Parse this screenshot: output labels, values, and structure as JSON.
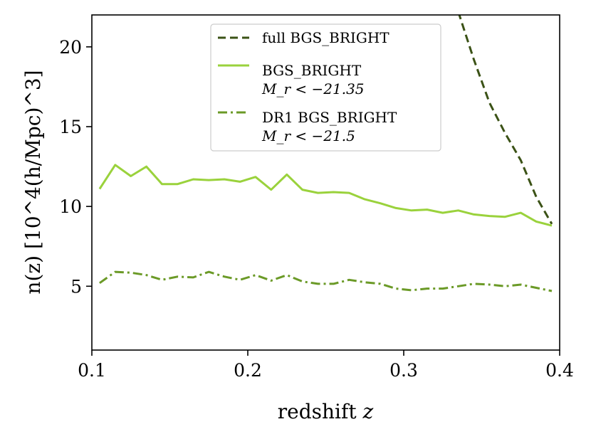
{
  "chart_data": {
    "type": "line",
    "xlabel": "redshift z",
    "ylabel": "n(z) [10^4(h/Mpc)^3]",
    "xlim": [
      0.1,
      0.4
    ],
    "ylim": [
      1,
      22
    ],
    "xticks": [
      0.1,
      0.2,
      0.3,
      0.4
    ],
    "xtick_labels": [
      "0.1",
      "0.2",
      "0.3",
      "0.4"
    ],
    "yticks": [
      5,
      10,
      15,
      20
    ],
    "ytick_labels": [
      "5",
      "10",
      "15",
      "20"
    ],
    "grid": false,
    "legend_position": "top-center",
    "series": [
      {
        "name": "full BGS_BRIGHT",
        "sublabel": "",
        "color": "#3b5216",
        "style": "dashed",
        "x": [
          0.335,
          0.345,
          0.355,
          0.365,
          0.375,
          0.385,
          0.395
        ],
        "y": [
          22.2,
          19.2,
          16.5,
          14.6,
          12.9,
          10.6,
          8.9
        ]
      },
      {
        "name": "BGS_BRIGHT",
        "sublabel": "M_r < −21.35",
        "color": "#9ad23c",
        "style": "solid",
        "x": [
          0.105,
          0.115,
          0.125,
          0.135,
          0.145,
          0.155,
          0.165,
          0.175,
          0.185,
          0.195,
          0.205,
          0.215,
          0.225,
          0.235,
          0.245,
          0.255,
          0.265,
          0.275,
          0.285,
          0.295,
          0.305,
          0.315,
          0.325,
          0.335,
          0.345,
          0.355,
          0.365,
          0.375,
          0.385,
          0.395
        ],
        "y": [
          11.1,
          12.6,
          11.9,
          12.5,
          11.4,
          11.4,
          11.7,
          11.65,
          11.7,
          11.55,
          11.85,
          11.05,
          12.0,
          11.05,
          10.85,
          10.9,
          10.85,
          10.45,
          10.2,
          9.9,
          9.75,
          9.8,
          9.6,
          9.75,
          9.5,
          9.4,
          9.35,
          9.6,
          9.05,
          8.8
        ]
      },
      {
        "name": "DR1 BGS_BRIGHT",
        "sublabel": "M_r < −21.5",
        "color": "#6b9a27",
        "style": "dashdot",
        "x": [
          0.105,
          0.115,
          0.125,
          0.135,
          0.145,
          0.155,
          0.165,
          0.175,
          0.185,
          0.195,
          0.205,
          0.215,
          0.225,
          0.235,
          0.245,
          0.255,
          0.265,
          0.275,
          0.285,
          0.295,
          0.305,
          0.315,
          0.325,
          0.335,
          0.345,
          0.355,
          0.365,
          0.375,
          0.385,
          0.395
        ],
        "y": [
          5.2,
          5.9,
          5.85,
          5.7,
          5.4,
          5.6,
          5.55,
          5.9,
          5.6,
          5.4,
          5.7,
          5.35,
          5.7,
          5.3,
          5.15,
          5.15,
          5.4,
          5.25,
          5.15,
          4.85,
          4.75,
          4.85,
          4.85,
          5.0,
          5.15,
          5.1,
          5.0,
          5.1,
          4.9,
          4.7
        ]
      }
    ]
  }
}
